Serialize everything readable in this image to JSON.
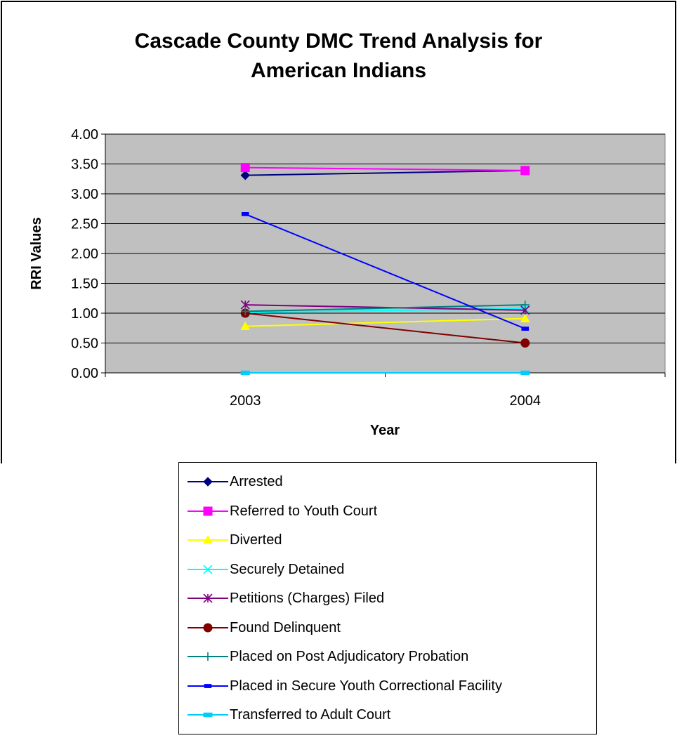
{
  "chart_data": {
    "type": "line",
    "title": "Cascade County DMC Trend Analysis for American Indians",
    "title_lines": [
      "Cascade County DMC Trend Analysis for",
      "American Indians"
    ],
    "xlabel": "Year",
    "ylabel": "RRI Values",
    "categories": [
      "2003",
      "2004"
    ],
    "ylim": [
      0,
      4
    ],
    "yticks": [
      "0.00",
      "0.50",
      "1.00",
      "1.50",
      "2.00",
      "2.50",
      "3.00",
      "3.50",
      "4.00"
    ],
    "plot_background": "#C0C0C0",
    "grid": "horizontal",
    "legend_position": "bottom",
    "series": [
      {
        "name": "Arrested",
        "values": [
          3.31,
          3.39
        ],
        "color": "#000080",
        "marker": "diamond"
      },
      {
        "name": "Referred to Youth Court",
        "values": [
          3.44,
          3.39
        ],
        "color": "#FF00FF",
        "marker": "square"
      },
      {
        "name": "Diverted",
        "values": [
          0.78,
          0.91
        ],
        "color": "#FFFF00",
        "marker": "triangle"
      },
      {
        "name": "Securely Detained",
        "values": [
          1.01,
          1.08
        ],
        "color": "#00FFFF",
        "marker": "x"
      },
      {
        "name": "Petitions (Charges) Filed",
        "values": [
          1.14,
          1.05
        ],
        "color": "#800080",
        "marker": "star"
      },
      {
        "name": "Found Delinquent",
        "values": [
          1.0,
          0.5
        ],
        "color": "#800000",
        "marker": "circle"
      },
      {
        "name": "Placed on Post Adjudicatory Probation",
        "values": [
          1.03,
          1.14
        ],
        "color": "#008080",
        "marker": "plus"
      },
      {
        "name": "Placed in Secure Youth Correctional Facility",
        "values": [
          2.66,
          0.74
        ],
        "color": "#0000FF",
        "marker": "dash"
      },
      {
        "name": "Transferred to Adult Court",
        "values": [
          0.0,
          0.0
        ],
        "color": "#00CCFF",
        "marker": "bar"
      }
    ]
  }
}
